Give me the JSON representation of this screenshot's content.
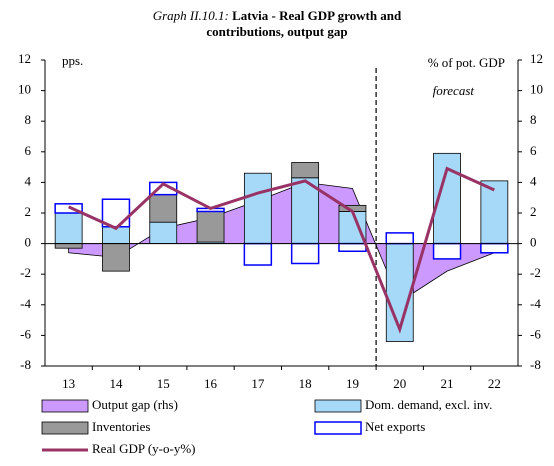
{
  "chart_data": {
    "type": "bar",
    "graph_label": "Graph II.10.1:",
    "title": [
      "Latvia - Real GDP growth and",
      "contributions, output gap"
    ],
    "y_unit_label": "pps.",
    "y2_unit_label": "% of pot. GDP",
    "annotation": "forecast",
    "categories": [
      "13",
      "14",
      "15",
      "16",
      "17",
      "18",
      "19",
      "20",
      "21",
      "22"
    ],
    "series": [
      {
        "name": "Output gap (rhs)",
        "type": "area",
        "axis": "y2",
        "color": "#cc99ff",
        "values": [
          -0.6,
          -0.9,
          1.0,
          1.7,
          2.8,
          4.0,
          3.6,
          -3.8,
          -1.8,
          -0.6
        ]
      },
      {
        "name": "Dom. demand, excl. inv.",
        "type": "bar",
        "color": "#a6d9f7",
        "values": [
          2.0,
          1.1,
          1.4,
          0.1,
          4.6,
          4.3,
          2.1,
          -6.4,
          5.9,
          4.1
        ]
      },
      {
        "name": "Inventories",
        "type": "bar",
        "color": "#999999",
        "values": [
          -0.3,
          -1.8,
          1.8,
          2.0,
          0,
          1.0,
          0.4,
          0,
          0,
          0
        ]
      },
      {
        "name": "Net exports",
        "type": "bar",
        "color": "#ffffff",
        "stroke": "#0000ff",
        "values": [
          0.6,
          1.8,
          0.8,
          0.2,
          -1.4,
          -1.3,
          -0.5,
          0.7,
          -1.0,
          -0.6
        ]
      },
      {
        "name": "Real GDP (y-o-y%)",
        "type": "line",
        "color": "#993366",
        "values": [
          2.4,
          1.0,
          3.9,
          2.3,
          3.3,
          4.1,
          2.1,
          -5.6,
          4.9,
          3.5
        ]
      }
    ],
    "ylim": [
      -8,
      12
    ],
    "yticks": [
      -8,
      -6,
      -4,
      -2,
      0,
      2,
      4,
      6,
      8,
      10,
      12
    ],
    "y2lim": [
      -8,
      12
    ],
    "y2ticks": [
      -8,
      -6,
      -4,
      -2,
      0,
      2,
      4,
      6,
      8,
      10,
      12
    ]
  }
}
